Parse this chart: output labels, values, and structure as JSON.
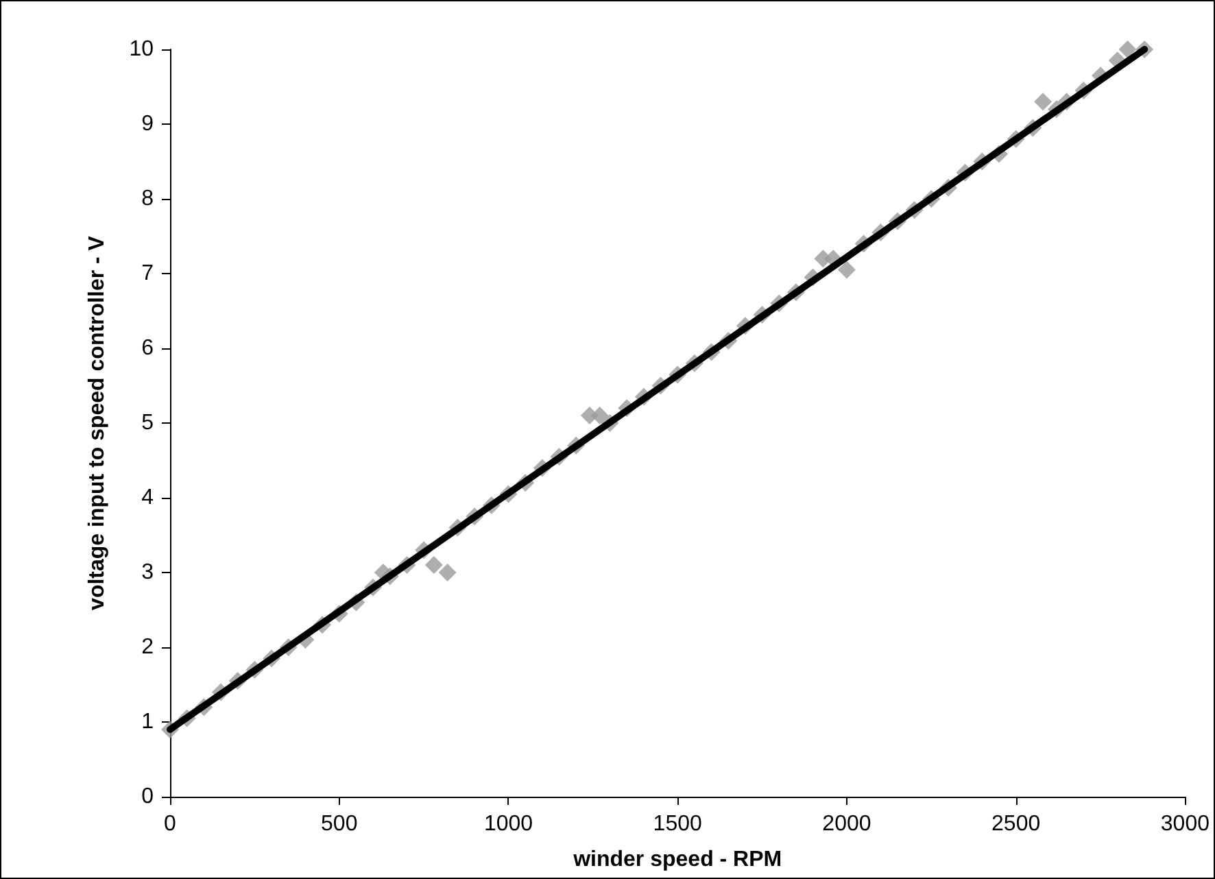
{
  "chart_data": {
    "type": "scatter",
    "xlabel": "winder speed - RPM",
    "ylabel": "voltage input to speed controller - V",
    "xlim": [
      0,
      3000
    ],
    "xticks": [
      0,
      500,
      1000,
      1500,
      2000,
      2500,
      3000
    ],
    "ylim": [
      0,
      10
    ],
    "yticks": [
      0,
      1,
      2,
      3,
      4,
      5,
      6,
      7,
      8,
      9,
      10
    ],
    "grid": false,
    "marker": "diamond",
    "series": [
      {
        "color": "#9a9a9a",
        "x": [
          0,
          50,
          100,
          150,
          200,
          250,
          300,
          350,
          400,
          450,
          500,
          550,
          600,
          630,
          650,
          700,
          750,
          780,
          820,
          850,
          900,
          950,
          1000,
          1050,
          1100,
          1150,
          1200,
          1240,
          1270,
          1300,
          1350,
          1400,
          1450,
          1500,
          1550,
          1600,
          1650,
          1700,
          1750,
          1800,
          1850,
          1900,
          1930,
          1960,
          2000,
          2050,
          2100,
          2150,
          2200,
          2250,
          2300,
          2350,
          2400,
          2450,
          2500,
          2550,
          2580,
          2620,
          2650,
          2700,
          2750,
          2800,
          2830,
          2880
        ],
        "values": [
          0.9,
          1.05,
          1.2,
          1.4,
          1.55,
          1.7,
          1.85,
          2.0,
          2.1,
          2.3,
          2.45,
          2.6,
          2.8,
          3.0,
          2.95,
          3.1,
          3.3,
          3.1,
          3.0,
          3.6,
          3.75,
          3.9,
          4.05,
          4.2,
          4.4,
          4.55,
          4.7,
          5.1,
          5.1,
          5.0,
          5.2,
          5.35,
          5.5,
          5.65,
          5.8,
          5.95,
          6.1,
          6.3,
          6.45,
          6.6,
          6.75,
          6.95,
          7.2,
          7.2,
          7.05,
          7.4,
          7.55,
          7.7,
          7.85,
          8.0,
          8.15,
          8.35,
          8.5,
          8.6,
          8.8,
          8.95,
          9.3,
          9.2,
          9.3,
          9.45,
          9.65,
          9.85,
          10.0,
          10.0
        ]
      },
      {
        "type": "line",
        "color": "#000000",
        "x": [
          0,
          2880
        ],
        "values": [
          0.9,
          10.0
        ],
        "line_style": "solid",
        "marker": "none"
      }
    ]
  }
}
